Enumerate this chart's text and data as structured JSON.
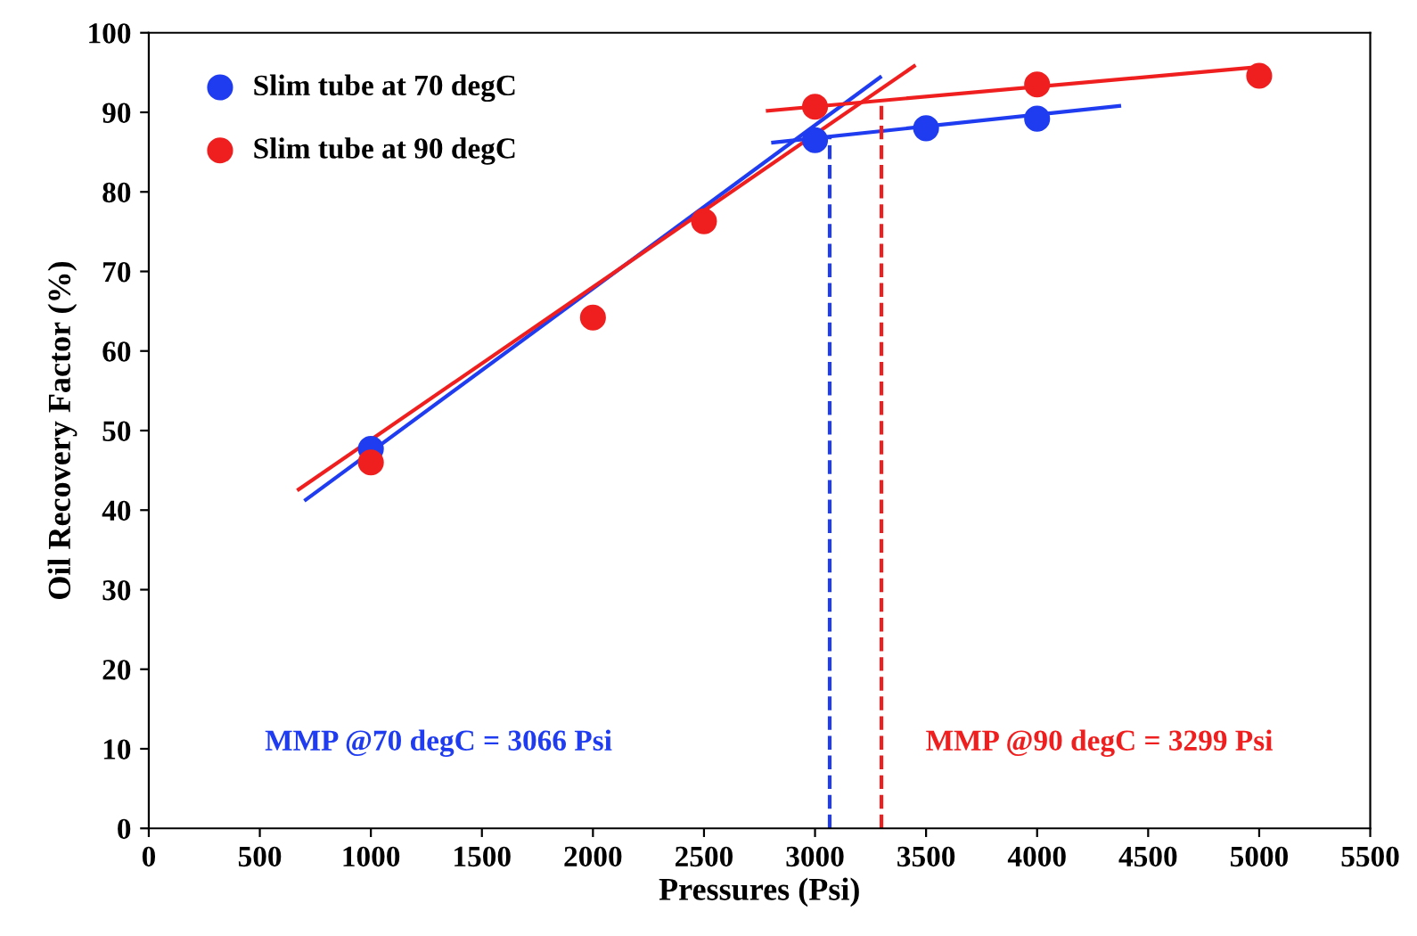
{
  "chart_data": {
    "type": "scatter",
    "xlabel": "Pressures (Psi)",
    "ylabel": "Oil Recovery Factor (%)",
    "xlim": [
      0,
      5500
    ],
    "ylim": [
      0,
      100
    ],
    "xticks": [
      0,
      500,
      1000,
      1500,
      2000,
      2500,
      3000,
      3500,
      4000,
      4500,
      5000,
      5500
    ],
    "yticks": [
      0,
      10,
      20,
      30,
      40,
      50,
      60,
      70,
      80,
      90,
      100
    ],
    "grid": false,
    "legend": "top left",
    "series": [
      {
        "type": "line",
        "color": "#1f3cf0",
        "x": [
          707,
          3293
        ],
        "values": [
          41.3,
          94.4
        ],
        "marker": "none",
        "line_style": "solid"
      },
      {
        "type": "line",
        "color": "#1f3cf0",
        "x": [
          2811,
          4370
        ],
        "values": [
          86.2,
          90.8
        ],
        "marker": "none",
        "line_style": "solid"
      },
      {
        "type": "line",
        "color": "#f01f1f",
        "x": [
          675,
          3446
        ],
        "values": [
          42.6,
          95.8
        ],
        "marker": "none",
        "line_style": "solid"
      },
      {
        "type": "line",
        "color": "#f01f1f",
        "x": [
          2787,
          5000
        ],
        "values": [
          90.2,
          95.7
        ],
        "marker": "none",
        "line_style": "solid"
      },
      {
        "type": "line",
        "color": "#1f3cf0",
        "x": [
          3066,
          3066
        ],
        "values": [
          0,
          86.9
        ],
        "marker": "none",
        "line_style": "dashed"
      },
      {
        "type": "line",
        "color": "#f01f1f",
        "x": [
          3299,
          3299
        ],
        "values": [
          0,
          91.0
        ],
        "marker": "none",
        "line_style": "dashed"
      },
      {
        "name": "Slim tube at 70 degC",
        "color": "#1f3cf0",
        "x": [
          1000,
          3000,
          3500,
          4000
        ],
        "values": [
          47.7,
          86.5,
          88.0,
          89.2
        ],
        "marker": "circle"
      },
      {
        "name": "Slim tube at 90 degC",
        "color": "#f01f1f",
        "x": [
          1000,
          2000,
          2500,
          3000,
          4000,
          5000
        ],
        "values": [
          46.0,
          64.2,
          76.3,
          90.7,
          93.5,
          94.6
        ],
        "marker": "circle"
      }
    ],
    "annotations": [
      "MMP @70 degC = 3066 Psi",
      "MMP @90 degC = 3299 Psi"
    ]
  }
}
